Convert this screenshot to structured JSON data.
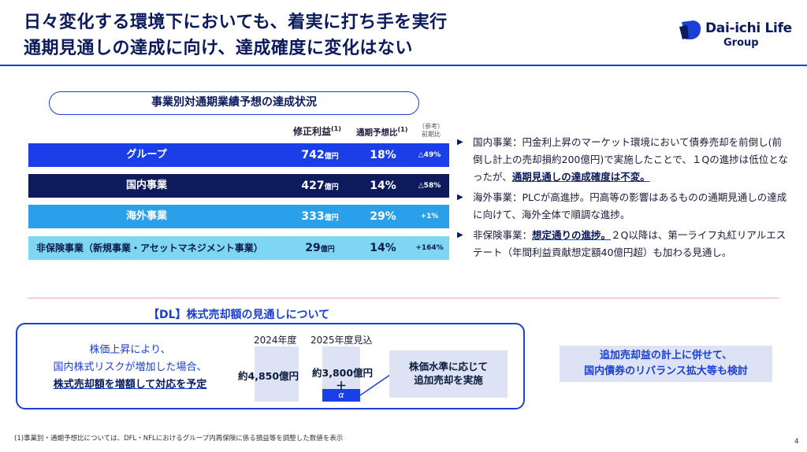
{
  "header": {
    "title_line1": "日々変化する環境下においても、着実に打ち手を実行",
    "title_line2": "通期見通しの達成に向け、達成確度に変化はない",
    "logo_name": "Dai-ichi Life",
    "logo_group": "Group"
  },
  "table": {
    "heading": "事業別対通期業績予想の達成状況",
    "columns": {
      "profit": "修正利益",
      "profit_note": "(1)",
      "ratio": "通期予想比",
      "ratio_note": "(1)",
      "ref": "（参考）",
      "ref2": "前期比"
    },
    "unit": "億円",
    "rows": [
      {
        "name": "グループ",
        "profit": "742",
        "ratio": "18%",
        "ref": "△49%"
      },
      {
        "name": "国内事業",
        "profit": "427",
        "ratio": "14%",
        "ref": "△58%"
      },
      {
        "name": "海外事業",
        "profit": "333",
        "ratio": "29%",
        "ref": "+1%"
      },
      {
        "name": "非保険事業（新規事業・アセットマネジメント事業）",
        "profit": "29",
        "ratio": "14%",
        "ref": "+164%"
      }
    ]
  },
  "bullets": [
    {
      "text": "国内事業：円金利上昇のマーケット環境において債券売却を前倒し(前倒し計上の売却損約200億円)で実施したことで、１Qの進捗は低位となったが、",
      "em": "通期見通しの達成確度は不変。",
      "tail": ""
    },
    {
      "text": "海外事業：PLCが高進捗。円高等の影響はあるものの通期見通しの達成に向けて、海外全体で順調な進捗。",
      "em": "",
      "tail": ""
    },
    {
      "text": "非保険事業：",
      "em": "想定通りの進捗。",
      "tail": "２Q以降は、第一ライフ丸紅リアルエステート（年間利益貢献想定額40億円超）も加わる見通し。"
    }
  ],
  "stock_box": {
    "title": "【DL】株式売却額の見通しについて",
    "line1": "株価上昇により、",
    "line2": "国内株式リスクが増加した場合、",
    "line3": "株式売却額を増額して対応を予定",
    "year1": "2024年度",
    "year2": "2025年度見込",
    "value1": "約4,850億円",
    "value2": "約3,800億円",
    "plus": "＋",
    "alpha": "α",
    "callout_line1": "株価水準に応じて",
    "callout_line2": "追加売却を実施"
  },
  "note_box": {
    "line1": "追加売却益の計上に併せて、",
    "line2": "国内債券のリバランス拡大等も検討"
  },
  "footnote": "(1)事業別・通期予想比については、DFL・NFLにおけるグループ内再保険に係る損益等を調整した数値を表示",
  "page_number": "4",
  "colors": {
    "primary": "#1a3fd4",
    "navy": "#0d1a5c",
    "group_row": "#1a3fe8",
    "overseas_row": "#2aa0ea",
    "non_insurance_row": "#7fd6f2",
    "light_box": "#dde3f5"
  }
}
